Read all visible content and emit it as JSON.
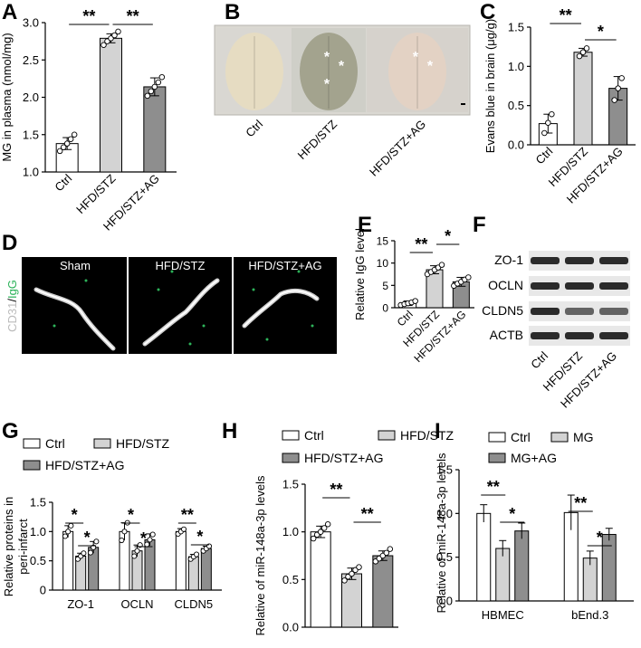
{
  "panel_letters": {
    "A": "A",
    "B": "B",
    "C": "C",
    "D": "D",
    "E": "E",
    "F": "F",
    "G": "G",
    "H": "H",
    "I": "I"
  },
  "colors": {
    "ctrl": "#ffffff",
    "hfd": "#d3d3d3",
    "ag": "#8e8e8e",
    "dark": "#000000",
    "green": "#2db35a"
  },
  "photo_b": {
    "labels": [
      "Ctrl",
      "HFD/STZ",
      "HFD/STZ+AG"
    ],
    "asterisk": "*"
  },
  "photo_d": {
    "columns": [
      "Sham",
      "HFD/STZ",
      "HFD/STZ+AG"
    ],
    "side_label_a": "CD31",
    "side_label_sep": "/",
    "side_label_b": "IgG"
  },
  "western_f": {
    "bands": [
      "ZO-1",
      "OCLN",
      "CLDN5",
      "ACTB"
    ],
    "lanes": [
      "Ctrl",
      "HFD/STZ",
      "HFD/STZ+AG"
    ]
  },
  "chart_data": [
    {
      "id": "A",
      "type": "bar",
      "categories": [
        "Ctrl",
        "HFD/STZ",
        "HFD/STZ+AG"
      ],
      "values": [
        1.38,
        2.79,
        2.14
      ],
      "errors": [
        0.08,
        0.06,
        0.12
      ],
      "points": [
        [
          1.28,
          1.33,
          1.38,
          1.44,
          1.5
        ],
        [
          2.7,
          2.75,
          2.79,
          2.83,
          2.88
        ],
        [
          2.02,
          2.08,
          2.14,
          2.2,
          2.27
        ]
      ],
      "ylabel": "MG in plasma (nmol/mg)",
      "ylim": [
        1.0,
        3.0
      ],
      "yticks": [
        "1.0",
        "1.5",
        "2.0",
        "2.5",
        "3.0"
      ],
      "sig": [
        {
          "from": 0,
          "to": 1,
          "label": "**"
        },
        {
          "from": 1,
          "to": 2,
          "label": "**"
        }
      ]
    },
    {
      "id": "C",
      "type": "bar",
      "categories": [
        "Ctrl",
        "HFD/STZ",
        "HFD/STZ+AG"
      ],
      "values": [
        0.27,
        1.18,
        0.72
      ],
      "errors": [
        0.12,
        0.05,
        0.15
      ],
      "points": [
        [
          0.15,
          0.28,
          0.39
        ],
        [
          1.13,
          1.18,
          1.23
        ],
        [
          0.57,
          0.72,
          0.85
        ]
      ],
      "ylabel": "Evans blue in brain (μg/g)",
      "ylim": [
        0,
        1.5
      ],
      "yticks": [
        "0.0",
        "0.5",
        "1.0",
        "1.5"
      ],
      "sig": [
        {
          "from": 0,
          "to": 1,
          "label": "**"
        },
        {
          "from": 1,
          "to": 2,
          "label": "*"
        }
      ]
    },
    {
      "id": "E",
      "type": "bar",
      "categories": [
        "Ctrl",
        "HFD/STZ",
        "HFD/STZ+AG"
      ],
      "values": [
        1.0,
        8.5,
        5.8
      ],
      "errors": [
        0.5,
        0.9,
        1.0
      ],
      "points": [
        [
          0.6,
          0.8,
          1.0,
          1.2,
          1.5
        ],
        [
          7.5,
          8.0,
          8.5,
          9.0,
          9.6
        ],
        [
          4.9,
          5.4,
          5.8,
          6.3,
          6.8
        ]
      ],
      "ylabel": "Relative IgG level",
      "ylim": [
        0,
        15
      ],
      "yticks": [
        "0",
        "5",
        "10",
        "15"
      ],
      "sig": [
        {
          "from": 0,
          "to": 1,
          "label": "**"
        },
        {
          "from": 1,
          "to": 2,
          "label": "*"
        }
      ]
    },
    {
      "id": "G",
      "type": "bar",
      "categories": [
        "ZO-1",
        "OCLN",
        "CLDN5"
      ],
      "series": [
        {
          "name": "Ctrl",
          "values": [
            1.0,
            1.0,
            1.0
          ],
          "errors": [
            0.1,
            0.15,
            0.05
          ],
          "points": [
            [
              0.92,
              1.0,
              1.1
            ],
            [
              0.85,
              1.0,
              1.15
            ],
            [
              0.96,
              1.0,
              1.04
            ]
          ]
        },
        {
          "name": "HFD/STZ",
          "values": [
            0.58,
            0.67,
            0.57
          ],
          "errors": [
            0.05,
            0.1,
            0.04
          ],
          "points": [
            [
              0.53,
              0.58,
              0.63
            ],
            [
              0.58,
              0.67,
              0.77
            ],
            [
              0.53,
              0.57,
              0.61
            ]
          ]
        },
        {
          "name": "HFD/STZ+AG",
          "values": [
            0.73,
            0.86,
            0.71
          ],
          "errors": [
            0.1,
            0.1,
            0.04
          ],
          "points": [
            [
              0.64,
              0.73,
              0.83
            ],
            [
              0.78,
              0.86,
              0.95
            ],
            [
              0.67,
              0.71,
              0.75
            ]
          ]
        }
      ],
      "ylabel": "Relative proteins in peri-infarct",
      "ylim": [
        0,
        1.5
      ],
      "yticks": [
        "0",
        "0.5",
        "1.0",
        "1.5"
      ],
      "sig": [
        {
          "group": 0,
          "from": 0,
          "to": 1,
          "label": "*"
        },
        {
          "group": 0,
          "from": 1,
          "to": 2,
          "label": "*"
        },
        {
          "group": 1,
          "from": 0,
          "to": 1,
          "label": "*"
        },
        {
          "group": 1,
          "from": 1,
          "to": 2,
          "label": "*"
        },
        {
          "group": 2,
          "from": 0,
          "to": 1,
          "label": "**"
        },
        {
          "group": 2,
          "from": 1,
          "to": 2,
          "label": "*"
        }
      ]
    },
    {
      "id": "H",
      "type": "bar",
      "categories": [
        "Ctrl",
        "HFD/STZ",
        "HFD/STZ+AG"
      ],
      "values": [
        1.0,
        0.56,
        0.75
      ],
      "errors": [
        0.06,
        0.06,
        0.05
      ],
      "points": [
        [
          0.93,
          0.97,
          1.0,
          1.04,
          1.08
        ],
        [
          0.49,
          0.53,
          0.56,
          0.6,
          0.63
        ],
        [
          0.69,
          0.72,
          0.75,
          0.78,
          0.82
        ]
      ],
      "legend": [
        "Ctrl",
        "HFD/STZ",
        "HFD/STZ+AG"
      ],
      "ylabel": "Relative of miR-148a-3p levels",
      "ylim": [
        0,
        1.5
      ],
      "yticks": [
        "0.0",
        "0.5",
        "1.0",
        "1.5"
      ],
      "sig": [
        {
          "from": 0,
          "to": 1,
          "label": "**"
        },
        {
          "from": 1,
          "to": 2,
          "label": "**"
        }
      ]
    },
    {
      "id": "I",
      "type": "bar",
      "categories": [
        "HBMEC",
        "bEnd.3"
      ],
      "series": [
        {
          "name": "Ctrl",
          "values": [
            1.0,
            1.01
          ],
          "errors": [
            0.1,
            0.2
          ]
        },
        {
          "name": "MG",
          "values": [
            0.6,
            0.49
          ],
          "errors": [
            0.09,
            0.08
          ]
        },
        {
          "name": "MG+AG",
          "values": [
            0.8,
            0.76
          ],
          "errors": [
            0.09,
            0.07
          ]
        }
      ],
      "ylabel": "Relative of miR-148a-3p levels",
      "ylim": [
        0,
        1.5
      ],
      "yticks": [
        "0.0",
        "0.5",
        "1.0",
        "1.5"
      ],
      "sig": [
        {
          "group": 0,
          "from": 0,
          "to": 1,
          "label": "**"
        },
        {
          "group": 0,
          "from": 1,
          "to": 2,
          "label": "*"
        },
        {
          "group": 1,
          "from": 0,
          "to": 1,
          "label": "**"
        },
        {
          "group": 1,
          "from": 1,
          "to": 2,
          "label": "*"
        }
      ]
    }
  ]
}
